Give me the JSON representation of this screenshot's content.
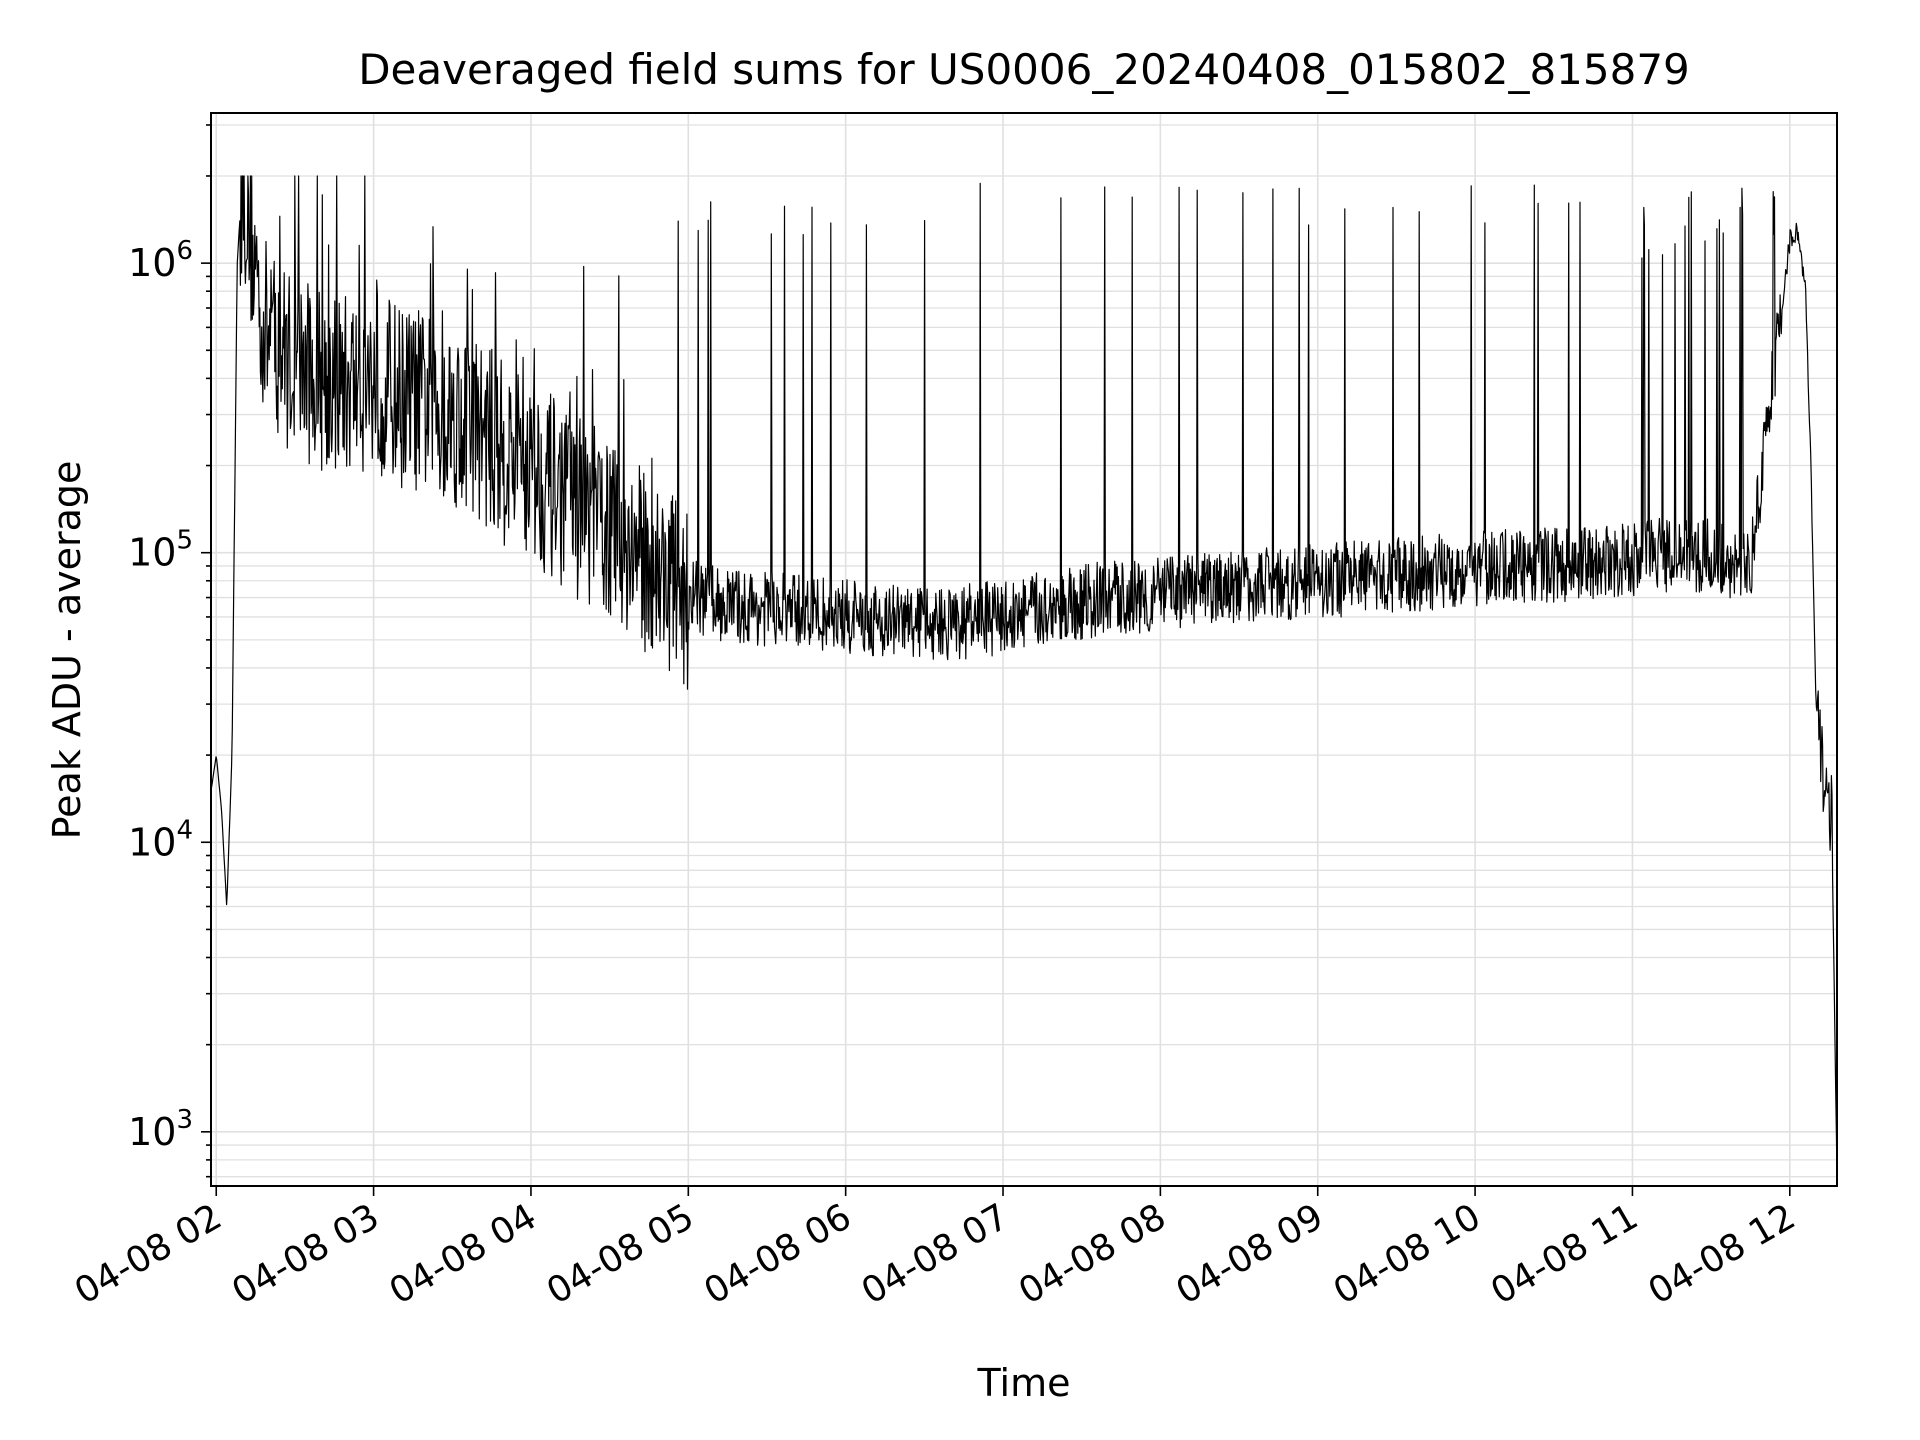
{
  "chart_data": {
    "type": "line",
    "title": "Deaveraged field sums for US0006_20240408_015802_815879",
    "xlabel": "Time",
    "ylabel": "Peak ADU - average",
    "yscale": "log",
    "xlim": [
      "2024-04-08 01:58",
      "2024-04-08 12:18"
    ],
    "ylim": [
      650,
      3300000
    ],
    "grid": true,
    "line_color": "#000000",
    "grid_color": "#e0e0e0",
    "x_ticks": [
      "04-08 02",
      "04-08 03",
      "04-08 04",
      "04-08 05",
      "04-08 06",
      "04-08 07",
      "04-08 08",
      "04-08 09",
      "04-08 10",
      "04-08 11",
      "04-08 12"
    ],
    "y_ticks": [
      {
        "value": 1000,
        "base": "10",
        "exp": "3"
      },
      {
        "value": 10000,
        "base": "10",
        "exp": "4"
      },
      {
        "value": 100000,
        "base": "10",
        "exp": "5"
      },
      {
        "value": 1000000,
        "base": "10",
        "exp": "6"
      }
    ],
    "series": [
      {
        "x": [
          "2024-04-08 01:58",
          "2024-04-08 02:00",
          "2024-04-08 02:02",
          "2024-04-08 02:04",
          "2024-04-08 02:06",
          "2024-04-08 02:08",
          "2024-04-08 02:10",
          "2024-04-08 02:14",
          "2024-04-08 02:18",
          "2024-04-08 02:25",
          "2024-04-08 02:30",
          "2024-04-08 02:40",
          "2024-04-08 02:50",
          "2024-04-08 03:00",
          "2024-04-08 03:10",
          "2024-04-08 03:20",
          "2024-04-08 03:30",
          "2024-04-08 03:40",
          "2024-04-08 03:50",
          "2024-04-08 04:00",
          "2024-04-08 04:10",
          "2024-04-08 04:20",
          "2024-04-08 04:30",
          "2024-04-08 04:40",
          "2024-04-08 04:50",
          "2024-04-08 05:00",
          "2024-04-08 05:20",
          "2024-04-08 05:40",
          "2024-04-08 06:00",
          "2024-04-08 06:20",
          "2024-04-08 06:40",
          "2024-04-08 07:00",
          "2024-04-08 07:20",
          "2024-04-08 07:40",
          "2024-04-08 08:00",
          "2024-04-08 08:20",
          "2024-04-08 08:40",
          "2024-04-08 09:00",
          "2024-04-08 09:20",
          "2024-04-08 09:40",
          "2024-04-08 10:00",
          "2024-04-08 10:20",
          "2024-04-08 10:40",
          "2024-04-08 11:00",
          "2024-04-08 11:20",
          "2024-04-08 11:35",
          "2024-04-08 11:45",
          "2024-04-08 11:55",
          "2024-04-08 12:00",
          "2024-04-08 12:03",
          "2024-04-08 12:06",
          "2024-04-08 12:08",
          "2024-04-08 12:10",
          "2024-04-08 12:12",
          "2024-04-08 12:14",
          "2024-04-08 12:16",
          "2024-04-08 12:18"
        ],
        "y": [
          15000,
          20000,
          13000,
          6000,
          20000,
          1000000,
          2000000,
          1100000,
          600000,
          500000,
          450000,
          400000,
          380000,
          400000,
          350000,
          330000,
          300000,
          270000,
          220000,
          200000,
          160000,
          140000,
          120000,
          100000,
          85000,
          70000,
          65000,
          63000,
          60000,
          58000,
          57000,
          60000,
          65000,
          70000,
          72000,
          75000,
          78000,
          80000,
          82000,
          85000,
          88000,
          90000,
          92000,
          95000,
          100000,
          95000,
          90000,
          500000,
          1200000,
          1300000,
          800000,
          200000,
          30000,
          20000,
          15000,
          12000,
          700
        ]
      }
    ]
  }
}
